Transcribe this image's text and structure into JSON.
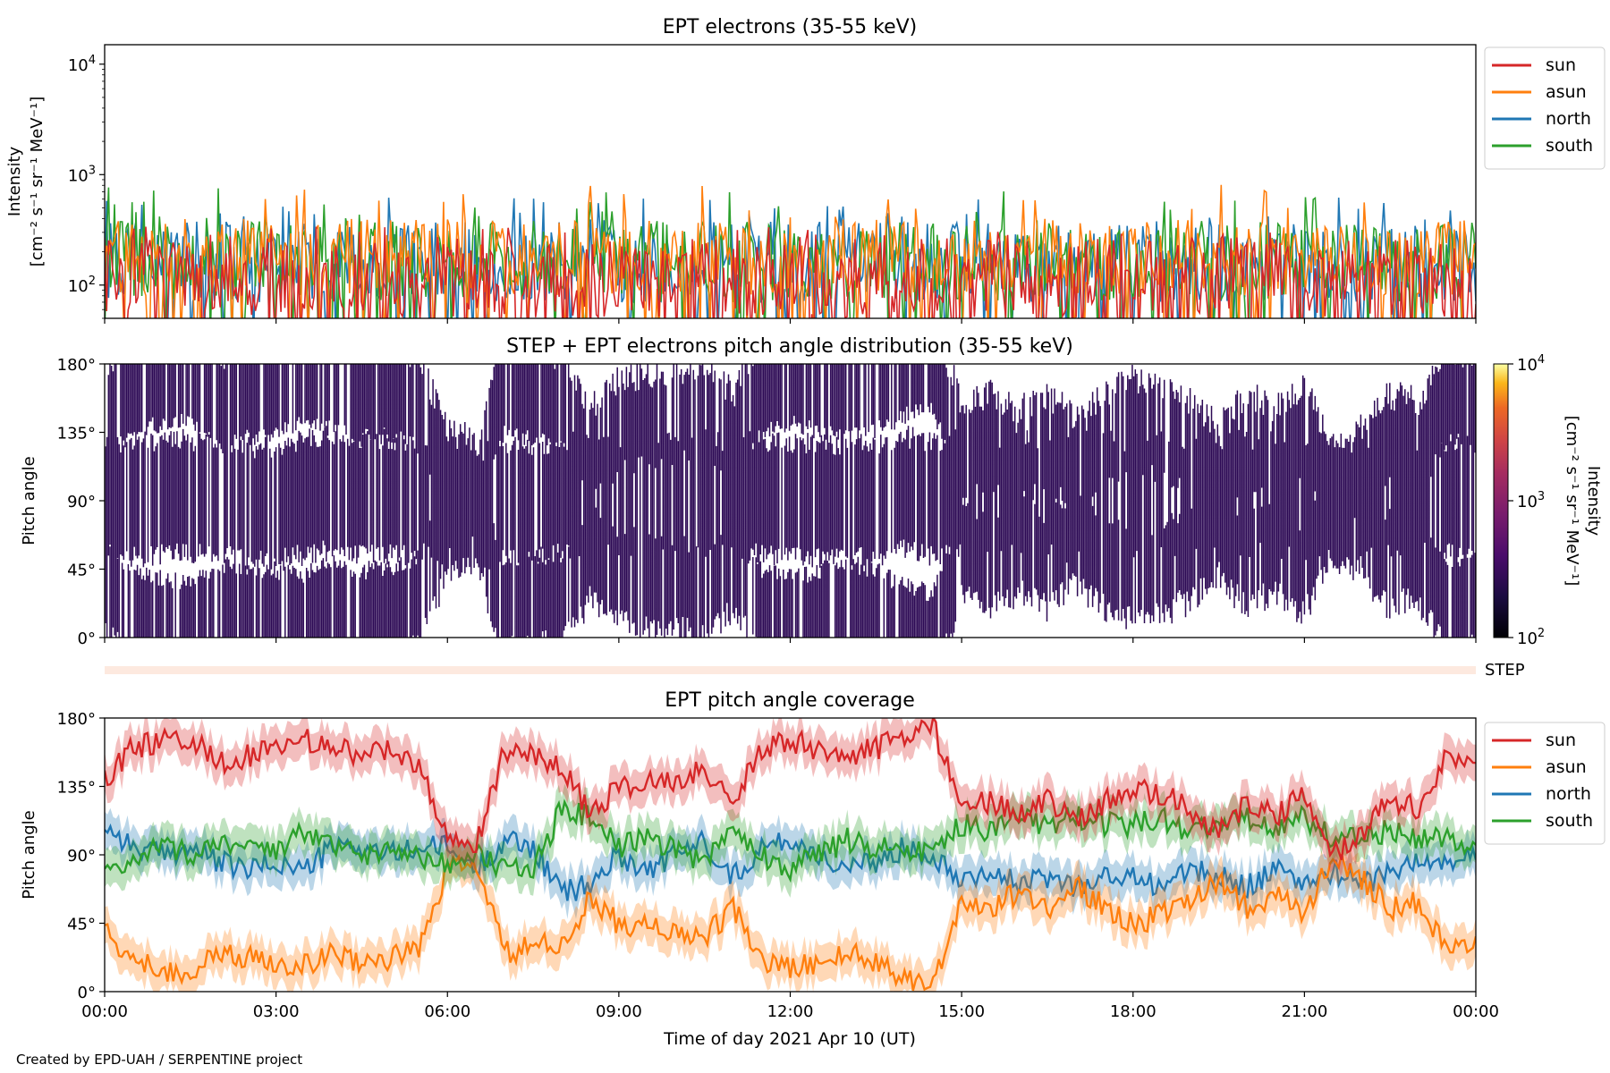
{
  "footer": {
    "credit": "Created by EPD-UAH / SERPENTINE project"
  },
  "colors": {
    "sun": "#d62728",
    "asun": "#ff7f0e",
    "north": "#1f77b4",
    "south": "#2ca02c",
    "pad": "#2d0a55",
    "step_strip": "#fde9df"
  },
  "chart_data": [
    {
      "type": "line",
      "title": "EPT electrons (35-55 keV)",
      "ylabel_line1": "Intensity",
      "ylabel_line2": "[cm⁻² s⁻¹ sr⁻¹ MeV⁻¹]",
      "y_scale": "log",
      "ylim": [
        50,
        15000
      ],
      "yticks": [
        {
          "value": 100,
          "base": "10",
          "exp": "2"
        },
        {
          "value": 1000,
          "base": "10",
          "exp": "3"
        },
        {
          "value": 10000,
          "base": "10",
          "exp": "4"
        }
      ],
      "xlim_hours": [
        0,
        24
      ],
      "legend_position": "outside-right-top",
      "series_description": "Noisy intensities fluctuating ~50–800",
      "series": [
        {
          "name": "north",
          "typical_low": 70,
          "typical_high": 380,
          "max": 620
        },
        {
          "name": "south",
          "typical_low": 70,
          "typical_high": 380,
          "max": 790
        },
        {
          "name": "asun",
          "typical_low": 80,
          "typical_high": 400,
          "max": 820
        },
        {
          "name": "sun",
          "typical_low": 50,
          "typical_high": 270,
          "max": 340
        }
      ]
    },
    {
      "type": "heatmap",
      "title": "STEP + EPT electrons pitch angle distribution (35-55 keV)",
      "ylabel": "Pitch angle",
      "ylim": [
        0,
        180
      ],
      "yticks": [
        "0°",
        "45°",
        "90°",
        "135°",
        "180°"
      ],
      "xlim_hours": [
        0,
        24
      ],
      "colorbar": {
        "label_line1": "Intensity",
        "label_line2": "[cm⁻² s⁻¹ sr⁻¹ MeV⁻¹]",
        "scale": "log",
        "range": [
          100,
          10000
        ],
        "ticks": [
          {
            "value": 100,
            "base": "10",
            "exp": "2"
          },
          {
            "value": 1000,
            "base": "10",
            "exp": "3"
          },
          {
            "value": 10000,
            "base": "10",
            "exp": "4"
          }
        ]
      },
      "step_label": "STEP"
    },
    {
      "type": "line",
      "title": "EPT pitch angle coverage",
      "ylabel": "Pitch angle",
      "xlabel": "Time of day 2021 Apr 10 (UT)",
      "ylim": [
        0,
        180
      ],
      "yticks": [
        {
          "value": 0,
          "label": "0°"
        },
        {
          "value": 45,
          "label": "45°"
        },
        {
          "value": 90,
          "label": "90°"
        },
        {
          "value": 135,
          "label": "135°"
        },
        {
          "value": 180,
          "label": "180°"
        }
      ],
      "xticks": [
        {
          "hour": 0,
          "label": "00:00"
        },
        {
          "hour": 3,
          "label": "03:00"
        },
        {
          "hour": 6,
          "label": "06:00"
        },
        {
          "hour": 9,
          "label": "09:00"
        },
        {
          "hour": 12,
          "label": "12:00"
        },
        {
          "hour": 15,
          "label": "15:00"
        },
        {
          "hour": 18,
          "label": "18:00"
        },
        {
          "hour": 21,
          "label": "21:00"
        },
        {
          "hour": 24,
          "label": "00:00"
        }
      ],
      "legend_position": "outside-right-top",
      "band_half_width_deg": 12,
      "series": [
        {
          "name": "sun",
          "x_hours": [
            0,
            0.5,
            1,
            1.5,
            2,
            2.5,
            3,
            3.5,
            4,
            4.5,
            5,
            5.5,
            6,
            6.5,
            7,
            7.5,
            8,
            8.5,
            9,
            9.5,
            10,
            10.5,
            11,
            11.5,
            12,
            12.5,
            13,
            13.5,
            14,
            14.5,
            15,
            15.5,
            16,
            16.5,
            17,
            17.5,
            18,
            18.5,
            19,
            19.5,
            20,
            20.5,
            21,
            21.5,
            22,
            22.5,
            23,
            23.5,
            24
          ],
          "y": [
            140,
            160,
            165,
            168,
            150,
            155,
            160,
            165,
            162,
            155,
            158,
            150,
            100,
            95,
            160,
            155,
            150,
            115,
            135,
            138,
            140,
            145,
            125,
            160,
            165,
            160,
            155,
            160,
            170,
            175,
            120,
            125,
            115,
            125,
            110,
            125,
            135,
            130,
            120,
            105,
            125,
            115,
            130,
            90,
            105,
            125,
            120,
            155,
            150
          ]
        },
        {
          "name": "asun",
          "x_hours": [
            0,
            0.5,
            1,
            1.5,
            2,
            2.5,
            3,
            3.5,
            4,
            4.5,
            5,
            5.5,
            6,
            6.5,
            7,
            7.5,
            8,
            8.5,
            9,
            9.5,
            10,
            10.5,
            11,
            11.5,
            12,
            12.5,
            13,
            13.5,
            14,
            14.5,
            15,
            15.5,
            16,
            16.5,
            17,
            17.5,
            18,
            18.5,
            19,
            19.5,
            20,
            20.5,
            21,
            21.5,
            22,
            22.5,
            23,
            23.5,
            24
          ],
          "y": [
            40,
            20,
            15,
            12,
            25,
            22,
            20,
            18,
            25,
            20,
            22,
            28,
            80,
            85,
            25,
            30,
            30,
            60,
            45,
            42,
            40,
            35,
            55,
            20,
            15,
            20,
            25,
            20,
            10,
            5,
            60,
            55,
            65,
            55,
            70,
            55,
            45,
            50,
            60,
            75,
            55,
            65,
            50,
            90,
            75,
            55,
            60,
            25,
            30
          ]
        },
        {
          "name": "north",
          "x_hours": [
            0,
            0.5,
            1,
            1.5,
            2,
            2.5,
            3,
            3.5,
            4,
            4.5,
            5,
            5.5,
            6,
            6.5,
            7,
            7.5,
            8,
            8.5,
            9,
            9.5,
            10,
            10.5,
            11,
            11.5,
            12,
            12.5,
            13,
            13.5,
            14,
            14.5,
            15,
            15.5,
            16,
            16.5,
            17,
            17.5,
            18,
            18.5,
            19,
            19.5,
            20,
            20.5,
            21,
            21.5,
            22,
            22.5,
            23,
            23.5,
            24
          ],
          "y": [
            110,
            95,
            90,
            95,
            85,
            80,
            85,
            80,
            95,
            95,
            90,
            95,
            95,
            80,
            100,
            95,
            65,
            70,
            90,
            80,
            90,
            100,
            75,
            95,
            100,
            90,
            80,
            85,
            95,
            90,
            75,
            80,
            70,
            75,
            70,
            75,
            75,
            70,
            80,
            75,
            70,
            80,
            70,
            80,
            70,
            80,
            85,
            85,
            90
          ]
        },
        {
          "name": "south",
          "x_hours": [
            0,
            0.5,
            1,
            1.5,
            2,
            2.5,
            3,
            3.5,
            4,
            4.5,
            5,
            5.5,
            6,
            6.5,
            7,
            7.5,
            8,
            8.5,
            9,
            9.5,
            10,
            10.5,
            11,
            11.5,
            12,
            12.5,
            13,
            13.5,
            14,
            14.5,
            15,
            15.5,
            16,
            16.5,
            17,
            17.5,
            18,
            18.5,
            19,
            19.5,
            20,
            20.5,
            21,
            21.5,
            22,
            22.5,
            23,
            23.5,
            24
          ],
          "y": [
            75,
            85,
            95,
            90,
            100,
            95,
            90,
            105,
            95,
            90,
            95,
            90,
            85,
            90,
            80,
            80,
            120,
            115,
            95,
            100,
            95,
            85,
            110,
            90,
            80,
            90,
            100,
            95,
            95,
            90,
            110,
            105,
            115,
            110,
            115,
            110,
            110,
            115,
            105,
            110,
            115,
            105,
            115,
            100,
            105,
            105,
            100,
            100,
            95
          ]
        }
      ]
    }
  ]
}
